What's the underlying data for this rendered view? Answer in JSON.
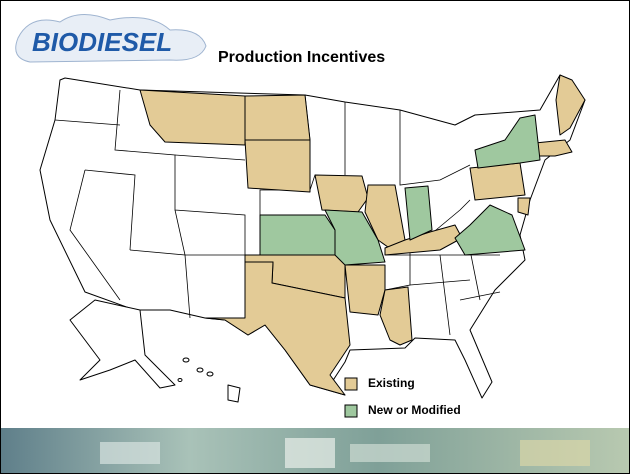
{
  "header": {
    "logo": "BIODIESEL",
    "title": "Production Incentives"
  },
  "legend": [
    {
      "label": "Existing",
      "color": "#e3cb96"
    },
    {
      "label": "New or Modified",
      "color": "#9fc89f"
    }
  ]
}
